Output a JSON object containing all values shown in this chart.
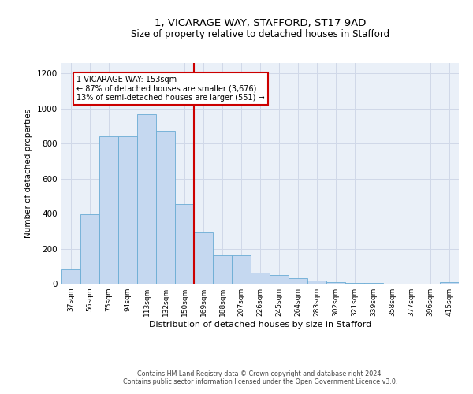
{
  "title_line1": "1, VICARAGE WAY, STAFFORD, ST17 9AD",
  "title_line2": "Size of property relative to detached houses in Stafford",
  "xlabel": "Distribution of detached houses by size in Stafford",
  "ylabel": "Number of detached properties",
  "footer_line1": "Contains HM Land Registry data © Crown copyright and database right 2024.",
  "footer_line2": "Contains public sector information licensed under the Open Government Licence v3.0.",
  "categories": [
    "37sqm",
    "56sqm",
    "75sqm",
    "94sqm",
    "113sqm",
    "132sqm",
    "150sqm",
    "169sqm",
    "188sqm",
    "207sqm",
    "226sqm",
    "245sqm",
    "264sqm",
    "283sqm",
    "302sqm",
    "321sqm",
    "339sqm",
    "358sqm",
    "377sqm",
    "396sqm",
    "415sqm"
  ],
  "values": [
    83,
    395,
    843,
    843,
    968,
    875,
    455,
    291,
    163,
    163,
    65,
    48,
    30,
    20,
    10,
    5,
    5,
    0,
    0,
    0,
    10
  ],
  "bar_color": "#c5d8f0",
  "bar_edge_color": "#6aacd4",
  "reference_line_color": "#cc0000",
  "reference_line_x": 6.5,
  "annotation_text": "1 VICARAGE WAY: 153sqm\n← 87% of detached houses are smaller (3,676)\n13% of semi-detached houses are larger (551) →",
  "annotation_box_color": "#ffffff",
  "annotation_box_edge_color": "#cc0000",
  "ylim": [
    0,
    1260
  ],
  "yticks": [
    0,
    200,
    400,
    600,
    800,
    1000,
    1200
  ],
  "grid_color": "#d0d8e8",
  "background_color": "#eaf0f8"
}
